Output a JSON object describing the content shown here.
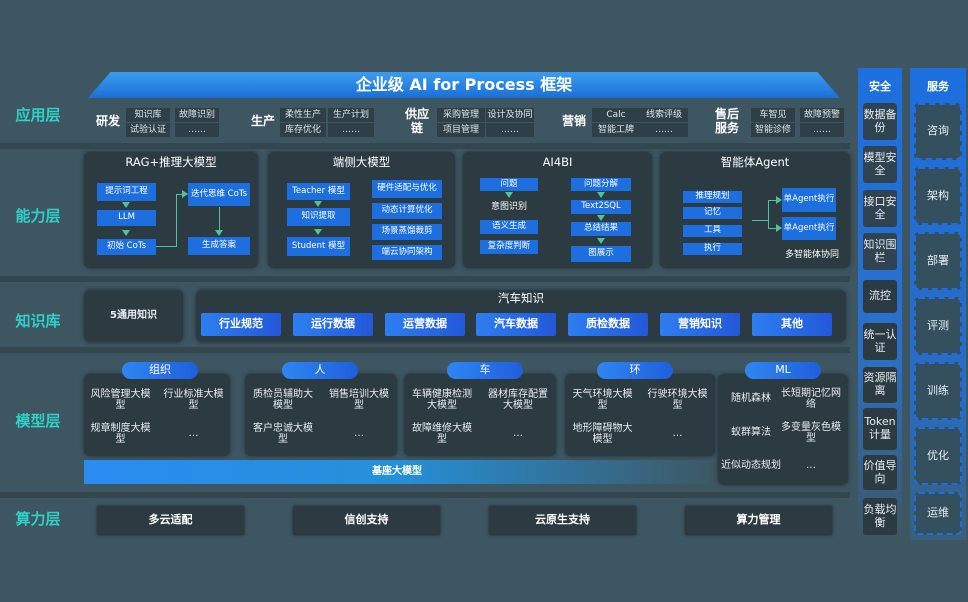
{
  "title": "企业级 AI for Process 框架",
  "layers": {
    "app": "应用层",
    "capability": "能力层",
    "knowledge": "知识库",
    "model": "模型层",
    "compute": "算力层"
  },
  "app_groups": [
    {
      "name": "研发",
      "items": [
        "知识库",
        "故障识别",
        "试验认证",
        "……"
      ]
    },
    {
      "name": "生产",
      "items": [
        "柔性生产",
        "生产计划",
        "库存优化",
        "……"
      ]
    },
    {
      "name": "供应链",
      "items": [
        "采购管理",
        "设计及协同",
        "项目管理",
        "……"
      ]
    },
    {
      "name": "营销",
      "items": [
        "Calc",
        "线索评级",
        "智能工牌",
        "……"
      ]
    },
    {
      "name": "售后服务",
      "items": [
        "车智见",
        "故障预警",
        "智能诊修",
        "……"
      ]
    }
  ],
  "capability": {
    "rag": {
      "title": "RAG+推理大模型",
      "items": [
        "提示词工程",
        "LLM",
        "初始 CoTs",
        "迭代思维 CoTs",
        "生成答案"
      ]
    },
    "edge": {
      "title": "端侧大模型",
      "items": [
        "Teacher 模型",
        "知识提取",
        "Student 模型",
        "硬件适配与优化",
        "动态计算优化",
        "场景蒸馏裁剪",
        "端云协同架构"
      ]
    },
    "ai4bi": {
      "title": "AI4BI",
      "items": [
        "问题",
        "意图识别",
        "语义生成",
        "复杂度判断",
        "问题分解",
        "Text2SQL",
        "总结结果",
        "图展示"
      ]
    },
    "agent": {
      "title": "智能体Agent",
      "items": [
        "推理规划",
        "记忆",
        "工具",
        "执行",
        "单Agent执行",
        "单Agent执行"
      ],
      "footer": "多智能体协同"
    }
  },
  "knowledge": {
    "general": "5通用知识",
    "auto_title": "汽车知识",
    "items": [
      "行业规范",
      "运行数据",
      "运营数据",
      "汽车数据",
      "质检数据",
      "营销知识",
      "其他"
    ]
  },
  "models": {
    "groups": [
      {
        "name": "组织",
        "items": [
          "风险管理大模型",
          "行业标准大模型",
          "规章制度大模型",
          "…"
        ]
      },
      {
        "name": "人",
        "items": [
          "质检员辅助大模型",
          "销售培训大模型",
          "客户忠诚大模型",
          "…"
        ]
      },
      {
        "name": "车",
        "items": [
          "车辆健康检测大模型",
          "器材库存配置大模型",
          "故障维修大模型",
          "…"
        ]
      },
      {
        "name": "环",
        "items": [
          "天气环境大模型",
          "行驶环境大模型",
          "地形障碍物大模型",
          "…"
        ]
      },
      {
        "name": "ML",
        "items": [
          "随机森林",
          "长短期记忆网络",
          "蚁群算法",
          "多变量灰色模型",
          "近似动态规划",
          "…"
        ]
      }
    ],
    "base": "基座大模型"
  },
  "compute": [
    "多云适配",
    "信创支持",
    "云原生支持",
    "算力管理"
  ],
  "security": {
    "title": "安全",
    "items": [
      "数据备份",
      "模型安全",
      "接口安全",
      "知识围栏",
      "流控",
      "统一认证",
      "资源隔离",
      "Token计量",
      "价值导向",
      "负载均衡"
    ]
  },
  "services": {
    "title": "服务",
    "items": [
      "咨询",
      "架构",
      "部署",
      "评测",
      "训练",
      "优化",
      "运维"
    ]
  },
  "colors": {
    "background": "#3e5661",
    "accent_blue": "#1d6fe0",
    "layer_label": "#2fd0c8",
    "panel": "#2c3a42"
  }
}
